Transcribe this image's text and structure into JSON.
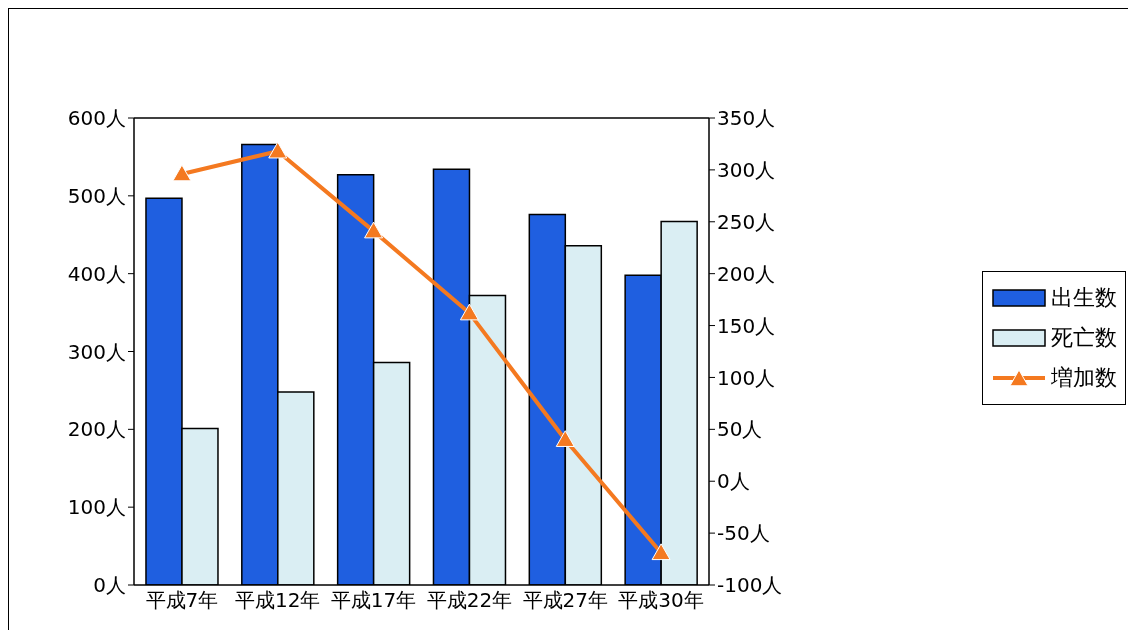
{
  "chart_data": {
    "type": "bar",
    "categories": [
      "平成7年",
      "平成12年",
      "平成17年",
      "平成22年",
      "平成27年",
      "平成30年"
    ],
    "series": [
      {
        "name": "出生数",
        "color": "#1f5fe0",
        "values": [
          497,
          566,
          527,
          534,
          476,
          398
        ]
      },
      {
        "name": "死亡数",
        "color": "#daeef3",
        "values": [
          201,
          248,
          286,
          372,
          436,
          467
        ]
      },
      {
        "name": "増加数",
        "type": "line",
        "axis": "y2",
        "color": "#f47920",
        "values": [
          296,
          318,
          241,
          162,
          40,
          -69
        ]
      }
    ],
    "ylim": [
      0,
      600
    ],
    "yticks": [
      {
        "value": 0,
        "label": "0人"
      },
      {
        "value": 100,
        "label": "100人"
      },
      {
        "value": 200,
        "label": "200人"
      },
      {
        "value": 300,
        "label": "300人"
      },
      {
        "value": 400,
        "label": "400人"
      },
      {
        "value": 500,
        "label": "500人"
      },
      {
        "value": 600,
        "label": "600人"
      }
    ],
    "y2lim": [
      -100,
      350
    ],
    "y2ticks": [
      {
        "value": -100,
        "label": "-100人"
      },
      {
        "value": -50,
        "label": "-50人"
      },
      {
        "value": 0,
        "label": "0人"
      },
      {
        "value": 50,
        "label": "50人"
      },
      {
        "value": 100,
        "label": "100人"
      },
      {
        "value": 150,
        "label": "150人"
      },
      {
        "value": 200,
        "label": "200人"
      },
      {
        "value": 250,
        "label": "250人"
      },
      {
        "value": 300,
        "label": "300人"
      },
      {
        "value": 350,
        "label": "350人"
      }
    ],
    "legend": "right",
    "marker": "triangle"
  }
}
